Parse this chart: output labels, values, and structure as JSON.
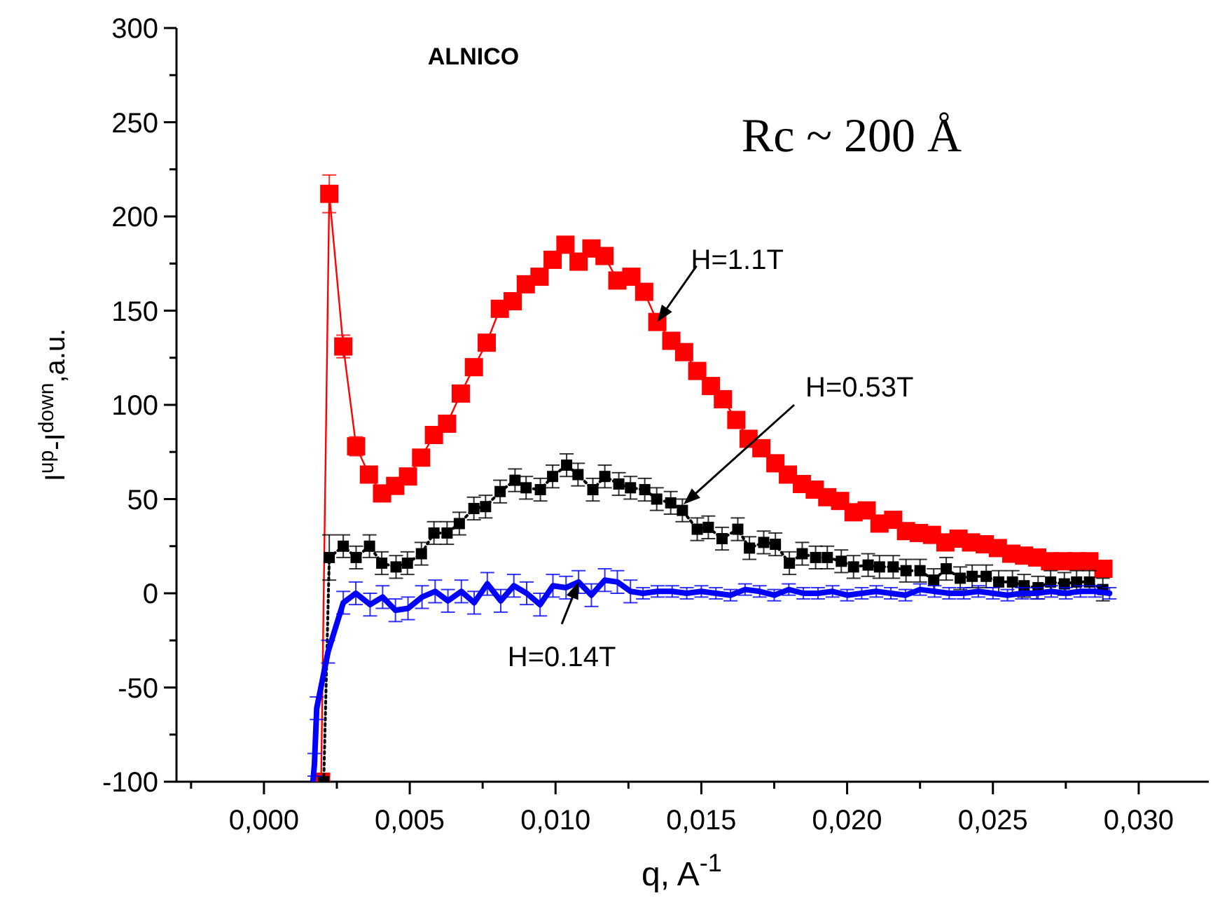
{
  "chart_data": {
    "type": "line",
    "title": "ALNICO",
    "xlabel": "q, A$^{-1}$",
    "ylabel": "I$^{up}$-I$^{down}$,a.u.",
    "xlim": [
      -0.003,
      0.0325
    ],
    "ylim": [
      -100,
      300
    ],
    "xticks": [
      {
        "value": -0.0025,
        "label": null
      },
      {
        "value": 0,
        "label": "0,000"
      },
      {
        "value": 0.0025,
        "label": null
      },
      {
        "value": 0.005,
        "label": "0,005"
      },
      {
        "value": 0.0075,
        "label": null
      },
      {
        "value": 0.01,
        "label": "0,010"
      },
      {
        "value": 0.0125,
        "label": null
      },
      {
        "value": 0.015,
        "label": "0,015"
      },
      {
        "value": 0.0175,
        "label": null
      },
      {
        "value": 0.02,
        "label": "0,020"
      },
      {
        "value": 0.0225,
        "label": null
      },
      {
        "value": 0.025,
        "label": "0,025"
      },
      {
        "value": 0.0275,
        "label": null
      },
      {
        "value": 0.03,
        "label": "0,030"
      }
    ],
    "yticks": [
      -100,
      {
        "value": -75,
        "label": null
      },
      -50,
      {
        "value": -25,
        "label": null
      },
      0,
      {
        "value": 25,
        "label": null
      },
      50,
      {
        "value": 75,
        "label": null
      },
      100,
      {
        "value": 125,
        "label": null
      },
      150,
      {
        "value": 175,
        "label": null
      },
      200,
      {
        "value": 225,
        "label": null
      },
      250,
      {
        "value": 275,
        "label": null
      },
      300
    ],
    "annotations": [
      "Rc ~ 200 Å",
      {
        "text": "H=1.1T",
        "x": 0.01349,
        "y": 144
      },
      "H=0.53T",
      {
        "text": "H=0.14T",
        "x": 0.01079,
        "y": 6
      }
    ],
    "series": [
      {
        "color": "#ff0000",
        "marker": "square",
        "line_style": "solid",
        "x": [
          0.00196,
          0.00224,
          0.00272,
          0.00316,
          0.0036,
          0.00405,
          0.0045,
          0.00494,
          0.00539,
          0.00583,
          0.00628,
          0.00675,
          0.0072,
          0.00764,
          0.00809,
          0.00853,
          0.00898,
          0.00945,
          0.0099,
          0.01034,
          0.01079,
          0.01123,
          0.01168,
          0.01212,
          0.0126,
          0.01304,
          0.01349,
          0.01397,
          0.01441,
          0.01486,
          0.01533,
          0.01574,
          0.0162,
          0.01662,
          0.01706,
          0.01754,
          0.01797,
          0.01845,
          0.01889,
          0.01932,
          0.01976,
          0.02022,
          0.02067,
          0.02111,
          0.02158,
          0.02202,
          0.02246,
          0.02291,
          0.02337,
          0.02382,
          0.02425,
          0.02472,
          0.02517,
          0.02563,
          0.02607,
          0.02652,
          0.02696,
          0.02742,
          0.02787,
          0.02831,
          0.02879
        ],
        "values": [
          -100,
          212,
          131,
          78,
          63,
          53,
          57,
          62,
          72,
          84,
          90,
          106,
          120,
          133,
          151,
          155,
          164,
          168,
          177,
          185,
          176,
          183,
          179,
          166,
          168,
          160,
          144,
          134,
          128,
          118,
          110,
          103,
          92,
          82,
          77,
          69,
          63,
          58,
          55,
          51,
          49,
          43,
          44,
          37,
          39,
          33,
          32,
          31,
          27,
          29,
          27,
          26,
          24,
          21,
          20,
          19,
          17,
          17,
          17,
          17,
          13
        ],
        "errors": [
          null,
          10,
          6,
          5,
          4,
          null,
          null,
          null,
          null,
          null,
          null,
          null,
          null,
          null,
          null,
          null,
          null,
          null,
          null,
          null,
          null,
          null,
          null,
          null,
          null,
          null,
          null,
          null,
          null,
          null,
          null,
          null,
          null,
          null,
          null,
          null,
          null,
          null,
          null,
          null,
          null,
          null,
          null,
          null,
          null,
          null,
          null,
          null,
          null,
          null,
          null,
          null,
          null,
          null,
          null,
          null,
          null,
          null,
          null,
          null,
          null
        ]
      },
      {
        "color": "#000000",
        "marker": "square",
        "line_style": "dotted",
        "x": [
          0.00205,
          0.00224,
          0.00272,
          0.00316,
          0.00362,
          0.00404,
          0.00453,
          0.00492,
          0.0054,
          0.00583,
          0.00628,
          0.0067,
          0.0072,
          0.0076,
          0.0081,
          0.00861,
          0.00899,
          0.00948,
          0.0099,
          0.01038,
          0.01077,
          0.01128,
          0.01169,
          0.01217,
          0.01257,
          0.01306,
          0.01347,
          0.01395,
          0.01435,
          0.01486,
          0.01524,
          0.01571,
          0.01625,
          0.01665,
          0.01714,
          0.01754,
          0.01802,
          0.01846,
          0.01892,
          0.01932,
          0.0198,
          0.02022,
          0.02072,
          0.02111,
          0.02158,
          0.02202,
          0.0225,
          0.02297,
          0.0234,
          0.02388,
          0.02429,
          0.02477,
          0.0252,
          0.02567,
          0.02607,
          0.02655,
          0.02698,
          0.02745,
          0.02787,
          0.02831,
          0.02877
        ],
        "values": [
          -100,
          19,
          25,
          19,
          25,
          16,
          14,
          16,
          21,
          32,
          32,
          37,
          45,
          46,
          54,
          60,
          56,
          55,
          62,
          68,
          63,
          55,
          62,
          58,
          56,
          55,
          50,
          48,
          44,
          34,
          35,
          29,
          34,
          24,
          27,
          26,
          16,
          21,
          19,
          19,
          17,
          14,
          15,
          14,
          14,
          12,
          12,
          7,
          13,
          8,
          9,
          9,
          6,
          6,
          4,
          3,
          6,
          5,
          6,
          6,
          2
        ],
        "errors": [
          null,
          12,
          6,
          6,
          6,
          6,
          6,
          6,
          6,
          6,
          6,
          6,
          6,
          6,
          6,
          6,
          6,
          6,
          6,
          6,
          6,
          6,
          6,
          6,
          6,
          6,
          6,
          6,
          6,
          6,
          6,
          6,
          6,
          6,
          6,
          6,
          6,
          6,
          6,
          6,
          6,
          6,
          6,
          6,
          6,
          6,
          6,
          6,
          6,
          6,
          6,
          6,
          6,
          6,
          6,
          6,
          6,
          6,
          6,
          6,
          6
        ]
      },
      {
        "color": "#0000ff",
        "marker": "none",
        "line_style": "solid",
        "x": [
          0.00168,
          0.00173,
          0.00181,
          0.0022,
          0.00272,
          0.00315,
          0.00364,
          0.00407,
          0.00451,
          0.00494,
          0.00542,
          0.00587,
          0.00631,
          0.00677,
          0.00721,
          0.00766,
          0.00812,
          0.00857,
          0.00901,
          0.00947,
          0.00991,
          0.01036,
          0.01079,
          0.01123,
          0.01169,
          0.01212,
          0.01257,
          0.013,
          0.0135,
          0.014,
          0.0145,
          0.015,
          0.0155,
          0.016,
          0.0165,
          0.017,
          0.0175,
          0.018,
          0.0185,
          0.019,
          0.0195,
          0.02,
          0.0205,
          0.021,
          0.0215,
          0.022,
          0.0225,
          0.023,
          0.0235,
          0.024,
          0.0245,
          0.025,
          0.0255,
          0.026,
          0.0265,
          0.027,
          0.0275,
          0.028,
          0.0285,
          0.029
        ],
        "values": [
          -100,
          -91,
          -61,
          -31,
          -5,
          0,
          -6,
          -2,
          -9,
          -8,
          -2,
          1,
          -4,
          1,
          -5,
          5,
          -4,
          4,
          0,
          -6,
          4,
          3,
          6,
          -1,
          7,
          6,
          1,
          0,
          1,
          1,
          0,
          1,
          0,
          -1,
          2,
          1,
          -1,
          2,
          0,
          0,
          1,
          -1,
          0,
          1,
          0,
          -1,
          2,
          1,
          0,
          0,
          1,
          0,
          -1,
          0,
          0,
          1,
          0,
          1,
          1,
          0
        ],
        "errors": [
          null,
          6,
          6,
          6,
          6,
          6,
          6,
          6,
          6,
          6,
          6,
          6,
          6,
          6,
          6,
          6,
          6,
          6,
          6,
          6,
          6,
          6,
          6,
          6,
          6,
          6,
          6,
          3,
          3,
          3,
          3,
          3,
          3,
          3,
          3,
          3,
          3,
          3,
          3,
          3,
          3,
          3,
          3,
          3,
          3,
          3,
          3,
          3,
          3,
          3,
          3,
          3,
          3,
          3,
          3,
          3,
          3,
          3,
          3,
          3
        ]
      }
    ]
  }
}
